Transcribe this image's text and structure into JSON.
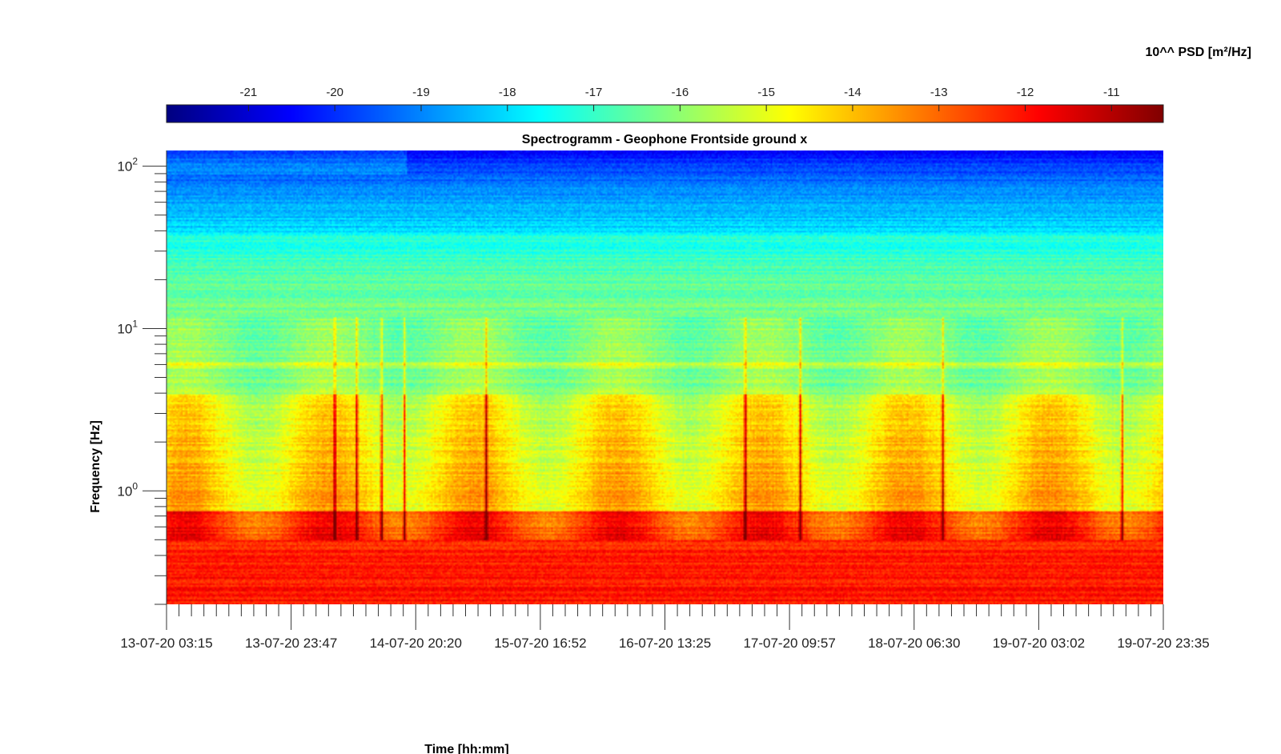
{
  "chart_data": {
    "type": "heatmap",
    "title": "Spectrogramm - Geophone Frontside ground x",
    "xlabel": "Time [hh:mm]",
    "ylabel": "Frequency [Hz]",
    "colorbar": {
      "label": "10^^ PSD [m²/Hz]",
      "ticks": [
        -21,
        -20,
        -19,
        -18,
        -17,
        -16,
        -15,
        -14,
        -13,
        -12,
        -11
      ],
      "range": [
        -21.95,
        -10.4
      ],
      "colormap": "jet",
      "placement": "top"
    },
    "x_ticks": [
      "13-07-20 03:15",
      "13-07-20 23:47",
      "14-07-20 20:20",
      "15-07-20 16:52",
      "16-07-20 13:25",
      "17-07-20 09:57",
      "18-07-20 06:30",
      "19-07-20 03:02",
      "19-07-20 23:35"
    ],
    "x_range": [
      "13-07-20 03:15",
      "19-07-20 23:35"
    ],
    "y_scale": "log",
    "y_ticks": [
      {
        "base": "10",
        "exp": "0",
        "value": 1
      },
      {
        "base": "10",
        "exp": "1",
        "value": 10
      },
      {
        "base": "10",
        "exp": "2",
        "value": 100
      }
    ],
    "y_range": [
      0.2,
      125
    ],
    "grid": false,
    "features": {
      "persistent_line_hz": 6,
      "low_freq_band_psd": -12.5,
      "mid_band_psd": -15.2,
      "upper_band_psd": -17.5,
      "top_band_psd": -20.5
    }
  }
}
